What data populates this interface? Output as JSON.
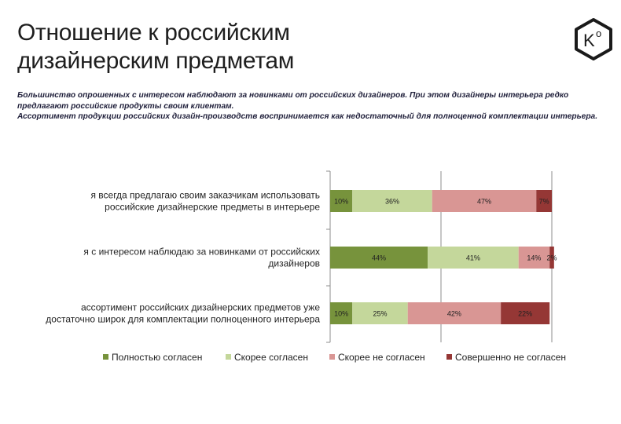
{
  "slide": {
    "title_lines": [
      "Отношение к российским",
      "дизайнерским предметам"
    ],
    "subtitle_lines": [
      "Большинство опрошенных с интересом наблюдают за новинками от российских дизайнеров. При этом дизайнеры интерьера редко",
      "предлагают российские продукты своим клиентам.",
      "Ассортимент продукции российских дизайн-производств воспринимается как недостаточный для полноценной комплектации интерьера."
    ],
    "logo": {
      "icon": "hexagon-k-logo",
      "text": "K",
      "superscript": "o",
      "color": "#1a1a1a"
    }
  },
  "chart_data": {
    "type": "bar",
    "orientation": "horizontal",
    "stacked": true,
    "grid": true,
    "legend_position": "bottom",
    "xlim": [
      0,
      100
    ],
    "categories": [
      [
        "я всегда предлагаю своим заказчикам использовать",
        "российские дизайнерские предметы в интерьере"
      ],
      [
        "я с интересом наблюдаю за новинками от российских",
        "дизайнеров"
      ],
      [
        "ассортимент российских дизайнерских предметов уже",
        "достаточно широк для комплектации полноценного интерьера"
      ]
    ],
    "series": [
      {
        "name": "Полностью согласен",
        "color": "#77933c",
        "values": [
          10,
          44,
          10
        ],
        "labels": [
          "10%",
          "44%",
          "10%"
        ]
      },
      {
        "name": "Скорее согласен",
        "color": "#c4d79b",
        "values": [
          36,
          41,
          25
        ],
        "labels": [
          "36%",
          "41%",
          "25%"
        ]
      },
      {
        "name": "Скорее не согласен",
        "color": "#d99694",
        "values": [
          47,
          14,
          42
        ],
        "labels": [
          "47%",
          "14%",
          "42%"
        ]
      },
      {
        "name": "Совершенно не согласен",
        "color": "#953735",
        "values": [
          7,
          2,
          22
        ],
        "labels": [
          "7%",
          "2%",
          "22%"
        ]
      }
    ]
  }
}
